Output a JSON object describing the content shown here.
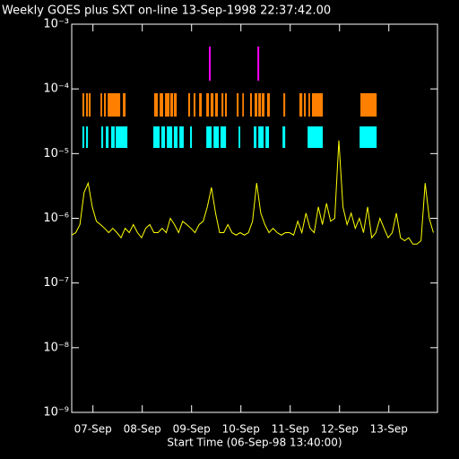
{
  "chart_data": {
    "type": "line",
    "title": "Weekly GOES plus SXT on-line 13-Sep-1998 22:37:42.00",
    "x_label": "Start Time (06-Sep-98 13:40:00)",
    "log_y": true,
    "xlim": [
      0,
      178
    ],
    "ylim": [
      1e-09,
      0.001
    ],
    "xticks": [
      {
        "value": 10.33,
        "label": "07-Sep"
      },
      {
        "value": 34.33,
        "label": "08-Sep"
      },
      {
        "value": 58.33,
        "label": "09-Sep"
      },
      {
        "value": 82.33,
        "label": "10-Sep"
      },
      {
        "value": 106.33,
        "label": "11-Sep"
      },
      {
        "value": 130.33,
        "label": "12-Sep"
      },
      {
        "value": 154.33,
        "label": "13-Sep"
      }
    ],
    "yticks": [
      {
        "value": 0.001,
        "label": "10⁻³"
      },
      {
        "value": 0.0001,
        "label": "10⁻⁴"
      },
      {
        "value": 1e-05,
        "label": "10⁻⁵"
      },
      {
        "value": 1e-06,
        "label": "10⁻⁶"
      },
      {
        "value": 1e-07,
        "label": "10⁻⁷"
      },
      {
        "value": 1e-08,
        "label": "10⁻⁸"
      },
      {
        "value": 1e-09,
        "label": "10⁻⁹"
      }
    ],
    "x": [
      0,
      2,
      4,
      6,
      8,
      10,
      12,
      14,
      16,
      18,
      20,
      22,
      24,
      26,
      28,
      30,
      32,
      34,
      36,
      38,
      40,
      42,
      44,
      46,
      48,
      50,
      52,
      54,
      56,
      58,
      60,
      62,
      64,
      66,
      68,
      70,
      72,
      74,
      76,
      78,
      80,
      82,
      84,
      86,
      88,
      90,
      92,
      94,
      96,
      98,
      100,
      102,
      104,
      106,
      108,
      110,
      112,
      114,
      116,
      118,
      120,
      122,
      124,
      126,
      128,
      130,
      132,
      134,
      136,
      138,
      140,
      142,
      144,
      146,
      148,
      150,
      152,
      154,
      156,
      158,
      160,
      162,
      164,
      166,
      168,
      170,
      172,
      174,
      176
    ],
    "series": [
      {
        "color": "#ffff00",
        "values": [
          5.5e-07,
          6e-07,
          8e-07,
          2.5e-06,
          3.5e-06,
          1.5e-06,
          9e-07,
          8e-07,
          7e-07,
          6e-07,
          7e-07,
          6e-07,
          5e-07,
          7e-07,
          6e-07,
          8e-07,
          6e-07,
          5e-07,
          7e-07,
          8e-07,
          6e-07,
          6e-07,
          7e-07,
          6e-07,
          1e-06,
          8e-07,
          6e-07,
          9e-07,
          8e-07,
          7e-07,
          6e-07,
          8e-07,
          9e-07,
          1.5e-06,
          3e-06,
          1.2e-06,
          6e-07,
          6e-07,
          8e-07,
          6e-07,
          5.5e-07,
          6e-07,
          5.5e-07,
          6e-07,
          9e-07,
          3.5e-06,
          1.2e-06,
          8e-07,
          6e-07,
          7e-07,
          6e-07,
          5.5e-07,
          6e-07,
          6e-07,
          5.5e-07,
          9e-07,
          6e-07,
          1.2e-06,
          7e-07,
          6e-07,
          1.5e-06,
          8e-07,
          1.7e-06,
          9e-07,
          1e-06,
          1.6e-05,
          1.5e-06,
          8e-07,
          1.2e-06,
          7e-07,
          1e-06,
          6e-07,
          1.5e-06,
          5e-07,
          6e-07,
          1e-06,
          7e-07,
          5e-07,
          6e-07,
          1.2e-06,
          5e-07,
          4.5e-07,
          5e-07,
          4e-07,
          4e-07,
          4.5e-07,
          3.5e-06,
          1e-06,
          6e-07
        ]
      }
    ],
    "coverage": [
      {
        "color": "#ff8000",
        "intervals": [
          [
            5.2,
            6.1
          ],
          [
            7.0,
            7.9
          ],
          [
            8.3,
            9.2
          ],
          [
            14.0,
            14.8
          ],
          [
            15.7,
            16.6
          ],
          [
            17.5,
            23.6
          ],
          [
            24.9,
            26.2
          ],
          [
            40.1,
            41.9
          ],
          [
            42.8,
            44.5
          ],
          [
            45.4,
            47.6
          ],
          [
            48.0,
            49.3
          ],
          [
            49.7,
            51.1
          ],
          [
            56.7,
            57.6
          ],
          [
            59.3,
            60.2
          ],
          [
            62.0,
            63.3
          ],
          [
            65.5,
            66.8
          ],
          [
            67.6,
            69.0
          ],
          [
            69.8,
            71.1
          ],
          [
            72.9,
            73.8
          ],
          [
            74.6,
            75.5
          ],
          [
            80.3,
            81.2
          ],
          [
            83.0,
            83.8
          ],
          [
            86.8,
            87.7
          ],
          [
            89.0,
            90.3
          ],
          [
            90.8,
            92.1
          ],
          [
            92.5,
            93.8
          ],
          [
            95.1,
            96.4
          ],
          [
            103.0,
            103.9
          ],
          [
            110.8,
            112.2
          ],
          [
            113.0,
            113.9
          ],
          [
            115.2,
            116.0
          ],
          [
            116.9,
            122.2
          ],
          [
            140.5,
            148.4
          ]
        ]
      },
      {
        "color": "#00ffff",
        "intervals": [
          [
            5.2,
            6.1
          ],
          [
            7.0,
            7.9
          ],
          [
            14.4,
            15.3
          ],
          [
            16.6,
            17.9
          ],
          [
            19.2,
            20.9
          ],
          [
            21.4,
            27.1
          ],
          [
            39.7,
            42.8
          ],
          [
            43.6,
            45.4
          ],
          [
            46.3,
            48.9
          ],
          [
            49.7,
            51.5
          ],
          [
            52.4,
            54.5
          ],
          [
            57.6,
            58.5
          ],
          [
            65.5,
            68.1
          ],
          [
            69.0,
            71.6
          ],
          [
            72.4,
            75.1
          ],
          [
            81.2,
            82.0
          ],
          [
            88.6,
            89.9
          ],
          [
            90.8,
            93.4
          ],
          [
            94.3,
            96.0
          ],
          [
            102.6,
            103.9
          ],
          [
            114.8,
            122.2
          ],
          [
            140.1,
            148.4
          ]
        ]
      }
    ],
    "events": {
      "color": "#ff00ff",
      "x": [
        67.2,
        90.8
      ]
    }
  }
}
